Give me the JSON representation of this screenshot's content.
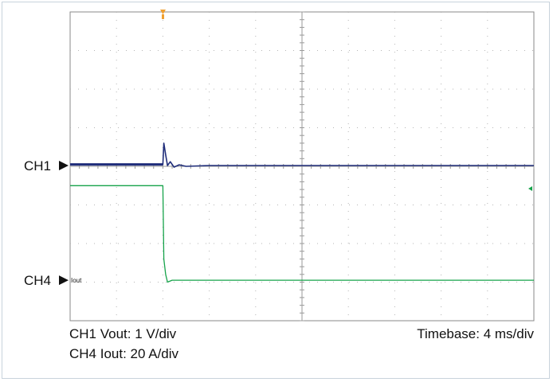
{
  "chart_data": {
    "type": "line",
    "grid": true,
    "x_divisions": 10,
    "y_divisions": 8,
    "timebase": "Timebase: 4 ms/div",
    "channels": [
      {
        "label": "CH1",
        "caption": "CH1 Vout: 1 V/div",
        "probe": "",
        "color": "#1f2d7a",
        "trace": [
          [
            0.0,
            4.05
          ],
          [
            2.0,
            4.05
          ],
          [
            2.02,
            4.6
          ],
          [
            2.06,
            4.3
          ],
          [
            2.1,
            4.02
          ],
          [
            2.16,
            4.12
          ],
          [
            2.24,
            3.98
          ],
          [
            2.35,
            4.04
          ],
          [
            2.5,
            4.0
          ],
          [
            3.0,
            4.02
          ],
          [
            10.0,
            4.02
          ]
        ]
      },
      {
        "label": "CH4",
        "caption": "CH4 Iout: 20 A/div",
        "probe": "Iout",
        "color": "#16a34a",
        "trace": [
          [
            0.0,
            3.5
          ],
          [
            2.0,
            3.5
          ],
          [
            2.02,
            1.6
          ],
          [
            2.06,
            1.2
          ],
          [
            2.1,
            1.0
          ],
          [
            2.2,
            1.05
          ],
          [
            4.0,
            1.05
          ],
          [
            10.0,
            1.05
          ]
        ]
      }
    ]
  }
}
